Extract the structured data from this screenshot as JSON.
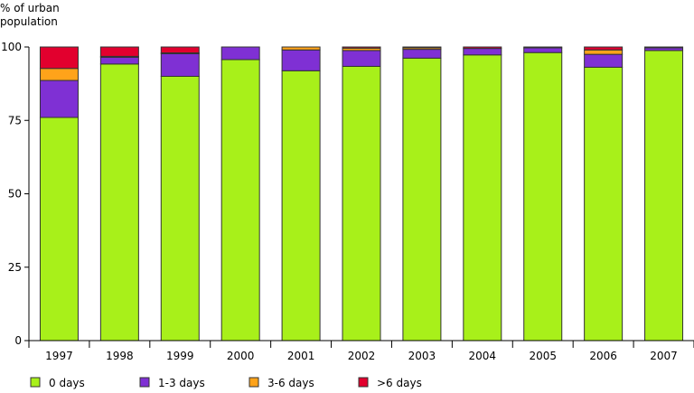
{
  "chart_data": {
    "type": "bar",
    "stacked": true,
    "title": "",
    "ylabel": "% of urban population",
    "ylabel_lines": [
      "% of urban",
      "population"
    ],
    "xlabel": "",
    "ylim": [
      0,
      100
    ],
    "yticks": [
      0,
      25,
      50,
      75,
      100
    ],
    "grid": false,
    "legend_position": "bottom",
    "categories": [
      "1997",
      "1998",
      "1999",
      "2000",
      "2001",
      "2002",
      "2003",
      "2004",
      "2005",
      "2006",
      "2007"
    ],
    "series": [
      {
        "name": "0 days",
        "color": "#a8f01a",
        "values": [
          76,
          94.2,
          90,
          95.7,
          91.9,
          93.4,
          96.2,
          97.3,
          98.1,
          93.1,
          98.8
        ]
      },
      {
        "name": "1-3 days",
        "color": "#7f30d4",
        "values": [
          12.6,
          2.3,
          7.7,
          4.3,
          7.1,
          5.4,
          3.0,
          2.2,
          1.6,
          4.4,
          0.9
        ]
      },
      {
        "name": "3-6 days",
        "color": "#ffa31a",
        "values": [
          4.1,
          0.3,
          0.3,
          0,
          1.0,
          0.8,
          0.5,
          0.0,
          0,
          1.5,
          0
        ]
      },
      {
        "name": ">6 days",
        "color": "#e2002e",
        "values": [
          7.3,
          3.2,
          2.0,
          0,
          0,
          0.4,
          0.3,
          0.5,
          0.3,
          1.0,
          0.3
        ]
      }
    ]
  }
}
